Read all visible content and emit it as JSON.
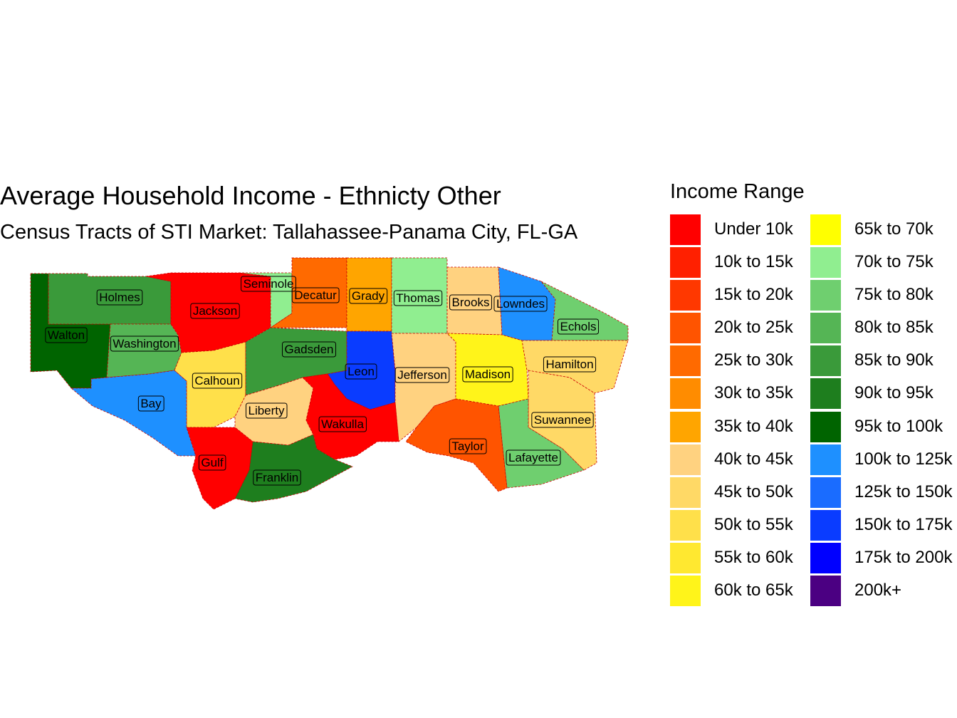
{
  "title": "Average Household Income - Ethnicty Other",
  "subtitle": "Census Tracts of STI Market: Tallahassee-Panama City, FL-GA",
  "legend": {
    "title": "Income Range",
    "items": [
      {
        "label": "Under 10k",
        "color": "#ff0000"
      },
      {
        "label": "10k to 15k",
        "color": "#ff2000"
      },
      {
        "label": "15k to 20k",
        "color": "#ff3800"
      },
      {
        "label": "20k to 25k",
        "color": "#ff5400"
      },
      {
        "label": "25k to 30k",
        "color": "#ff6a00"
      },
      {
        "label": "30k to 35k",
        "color": "#ff8c00"
      },
      {
        "label": "35k to 40k",
        "color": "#ffa500"
      },
      {
        "label": "40k to 45k",
        "color": "#ffd280"
      },
      {
        "label": "45k to 50k",
        "color": "#ffd966"
      },
      {
        "label": "50k to 55k",
        "color": "#ffe04a"
      },
      {
        "label": "55k to 60k",
        "color": "#ffe830"
      },
      {
        "label": "60k to 65k",
        "color": "#fff41a"
      },
      {
        "label": "65k to 70k",
        "color": "#ffff00"
      },
      {
        "label": "70k to 75k",
        "color": "#90ee90"
      },
      {
        "label": "75k to 80k",
        "color": "#6fcf6f"
      },
      {
        "label": "80k to 85k",
        "color": "#55b555"
      },
      {
        "label": "85k to 90k",
        "color": "#3a9a3a"
      },
      {
        "label": "90k to 95k",
        "color": "#1e7e1e"
      },
      {
        "label": "95k to 100k",
        "color": "#006400"
      },
      {
        "label": "100k to 125k",
        "color": "#1e90ff"
      },
      {
        "label": "125k to 150k",
        "color": "#1a6cff"
      },
      {
        "label": "150k to 175k",
        "color": "#0a3cff"
      },
      {
        "label": "175k to 200k",
        "color": "#0000ff"
      },
      {
        "label": "200k+",
        "color": "#4b0082"
      }
    ]
  },
  "counties": [
    "Holmes",
    "Seminole",
    "Decatur",
    "Grady",
    "Thomas",
    "Brooks",
    "Lowndes",
    "Jackson",
    "Echols",
    "Walton",
    "Washington",
    "Gadsden",
    "Hamilton",
    "Leon",
    "Jefferson",
    "Madison",
    "Calhoun",
    "Bay",
    "Suwannee",
    "Liberty",
    "Wakulla",
    "Taylor",
    "Lafayette",
    "Gulf",
    "Franklin"
  ],
  "county_fill_bands": {
    "Holmes": "85k to 90k",
    "Seminole": "70k to 75k",
    "Decatur": "25k to 30k",
    "Grady": "35k to 40k",
    "Thomas": "70k to 75k",
    "Brooks": "40k to 45k",
    "Lowndes": "100k to 125k",
    "Jackson": "Under 10k",
    "Echols": "75k to 80k",
    "Walton": "95k to 100k",
    "Washington": "80k to 85k",
    "Gadsden": "85k to 90k",
    "Hamilton": "45k to 50k",
    "Leon": "150k to 175k",
    "Jefferson": "40k to 45k",
    "Madison": "60k to 65k",
    "Calhoun": "50k to 55k",
    "Bay": "100k to 125k",
    "Suwannee": "45k to 50k",
    "Liberty": "40k to 45k",
    "Wakulla": "Under 10k",
    "Taylor": "20k to 25k",
    "Lafayette": "75k to 80k",
    "Gulf": "Under 10k",
    "Franklin": "90k to 95k"
  }
}
